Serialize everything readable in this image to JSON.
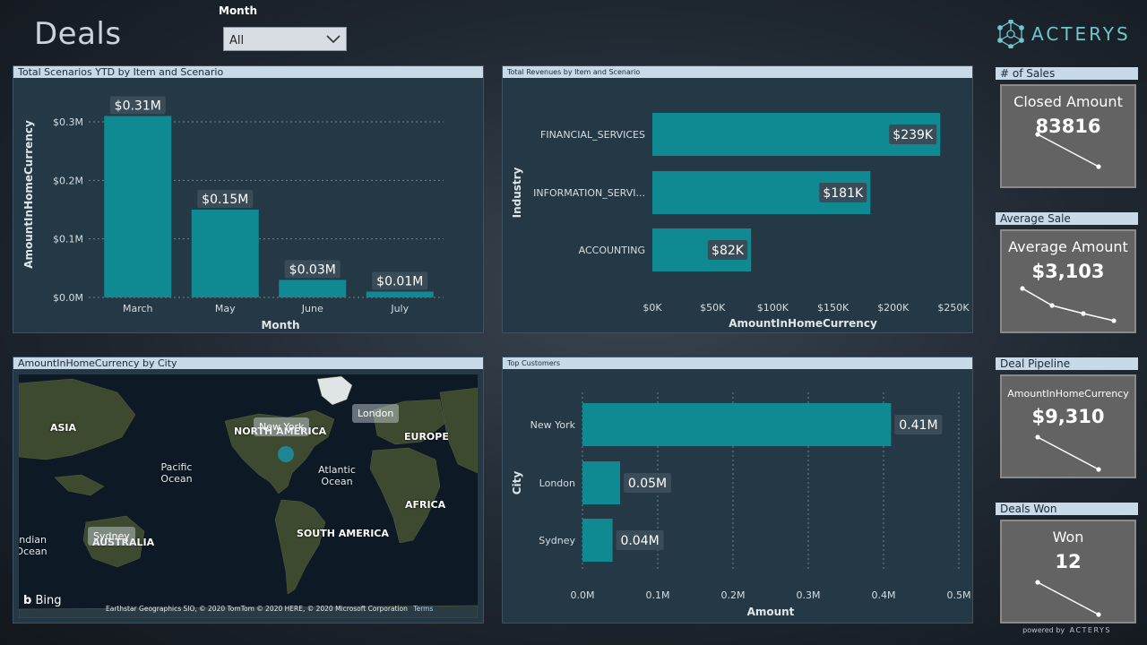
{
  "page": {
    "title": "Deals"
  },
  "filter": {
    "label": "Month",
    "value": "All"
  },
  "logo": {
    "text": "ACTERYS"
  },
  "panels": {
    "ytd": {
      "title": "Total Scenarios YTD by Item and Scenario",
      "chart_data": {
        "type": "bar",
        "categories": [
          "March",
          "May",
          "June",
          "July"
        ],
        "values": [
          0.31,
          0.15,
          0.03,
          0.01
        ],
        "data_labels": [
          "$0.31M",
          "$0.15M",
          "$0.03M",
          "$0.01M"
        ],
        "yticks": [
          "$0.0M",
          "$0.1M",
          "$0.2M",
          "$0.3M"
        ],
        "ylim": [
          0,
          0.3
        ],
        "xlabel": "Month",
        "ylabel": "AmountInHomeCurrency"
      }
    },
    "revenues": {
      "title": "Total Revenues by Item and Scenario",
      "chart_data": {
        "type": "bar",
        "orientation": "horizontal",
        "categories": [
          "FINANCIAL_SERVICES",
          "INFORMATION_SERVI...",
          "ACCOUNTING"
        ],
        "values": [
          239,
          181,
          82
        ],
        "data_labels": [
          "$239K",
          "$181K",
          "$82K"
        ],
        "xticks": [
          "$0K",
          "$50K",
          "$100K",
          "$150K",
          "$200K",
          "$250K"
        ],
        "xlim": [
          0,
          250
        ],
        "xlabel": "AmountInHomeCurrency",
        "ylabel": "Industry"
      }
    },
    "map": {
      "title": "AmountInHomeCurrency by City",
      "labels": {
        "asia": "ASIA",
        "north_america": "NORTH AMERICA",
        "europe": "EUROPE",
        "pacific": "Pacific Ocean",
        "atlantic": "Atlantic Ocean",
        "africa": "AFRICA",
        "south_america": "SOUTH AMERICA",
        "indian": "Indian Ocean",
        "australia": "AUSTRALIA"
      },
      "bubbles": {
        "new_york": "New York",
        "london": "London",
        "sydney": "Sydney"
      },
      "attribution": "Earthstar Geographics SIO, © 2020 TomTom © 2020 HERE, © 2020 Microsoft Corporation",
      "terms": "Terms",
      "bing": "Bing"
    },
    "customers": {
      "title": "Top Customers",
      "chart_data": {
        "type": "bar",
        "orientation": "horizontal",
        "categories": [
          "New York",
          "London",
          "Sydney"
        ],
        "values": [
          0.41,
          0.05,
          0.04
        ],
        "data_labels": [
          "0.41M",
          "0.05M",
          "0.04M"
        ],
        "xticks": [
          "0.0M",
          "0.1M",
          "0.2M",
          "0.3M",
          "0.4M",
          "0.5M"
        ],
        "xlim": [
          0,
          0.5
        ],
        "xlabel": "Amount",
        "ylabel": "City"
      }
    }
  },
  "cards": [
    {
      "header": "# of Sales",
      "label": "Closed Amount",
      "value": "83816"
    },
    {
      "header": "Average Sale",
      "label": "Average Amount",
      "value": "$3,103"
    },
    {
      "header": "Deal Pipeline",
      "label": "AmountInHomeCurrency",
      "value": "$9,310"
    },
    {
      "header": "Deals Won",
      "label": "Won",
      "value": "12"
    }
  ],
  "footer": {
    "powered": "powered by",
    "brand": "ACTERYS"
  },
  "colors": {
    "bar": "#0f8a93",
    "accent": "#6ec7c9",
    "panel": "#243845",
    "header": "#c8d9e7"
  }
}
